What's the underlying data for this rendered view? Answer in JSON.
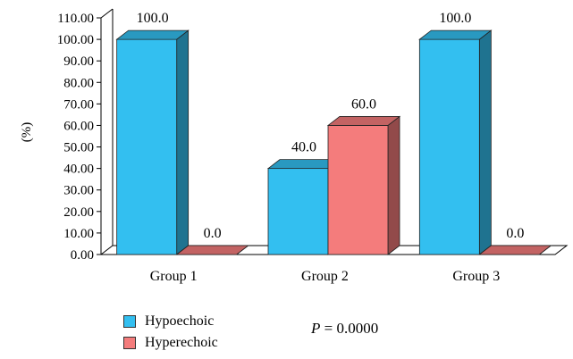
{
  "chart_data": {
    "type": "bar",
    "categories": [
      "Group 1",
      "Group 2",
      "Group 3"
    ],
    "series": [
      {
        "name": "Hypoechoic",
        "values": [
          100.0,
          40.0,
          100.0
        ],
        "color": "#33bff0"
      },
      {
        "name": "Hyperechoic",
        "values": [
          0.0,
          60.0,
          0.0
        ],
        "color": "#f47c7c"
      }
    ],
    "value_labels": [
      [
        "100.0",
        "40.0",
        "100.0"
      ],
      [
        "0.0",
        "60.0",
        "0.0"
      ]
    ],
    "ylabel": "(%)",
    "ylim": [
      0,
      110
    ],
    "yticks": [
      "0.00",
      "10.00",
      "20.00",
      "30.00",
      "40.00",
      "50.00",
      "60.00",
      "70.00",
      "80.00",
      "90.00",
      "100.00",
      "110.00"
    ],
    "legend_position": "bottom-left",
    "three_d": true,
    "annotation": {
      "italic": "P",
      "rest": " = 0.0000"
    }
  }
}
